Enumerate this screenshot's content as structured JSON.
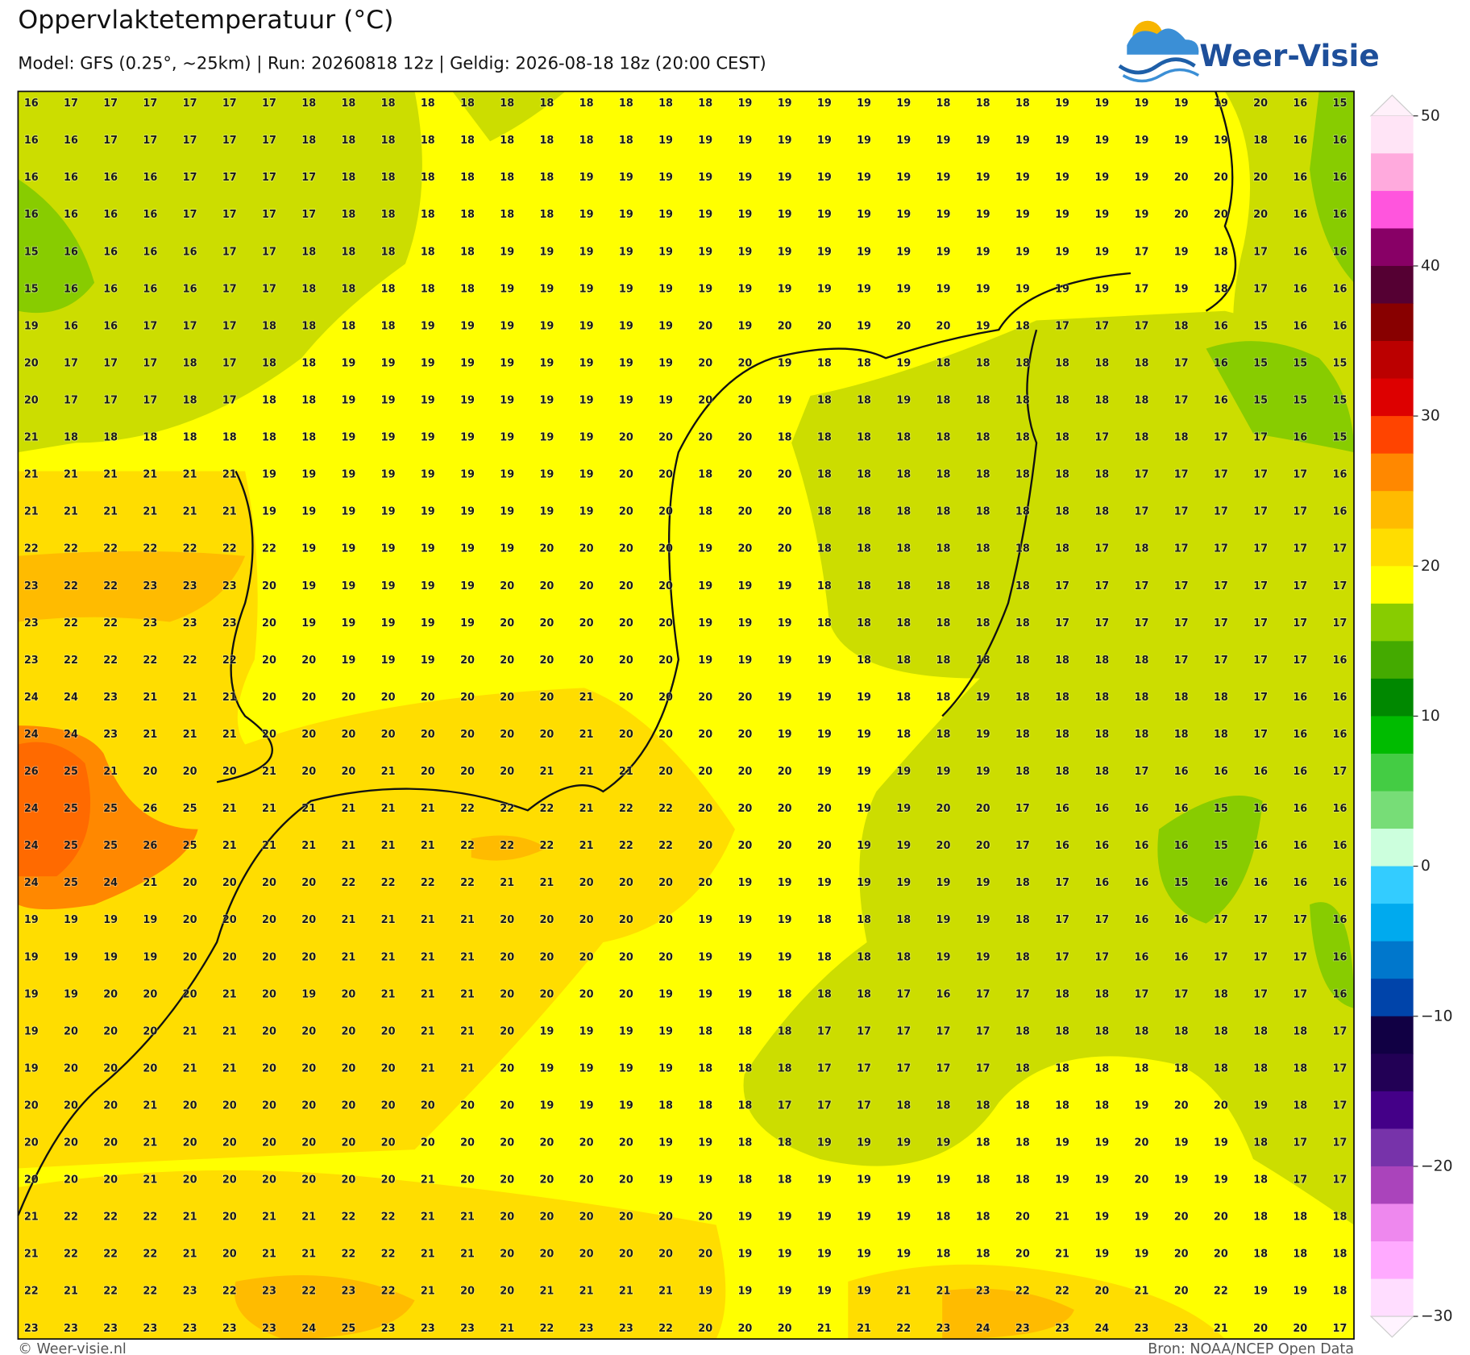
{
  "header": {
    "title": "Oppervlaktetemperatuur (°C)",
    "subtitle": "Model: GFS (0.25°, ~25km)  |  Run: 20260818 12z  |  Geldig: 2026-08-18 18z (20:00 CEST)"
  },
  "logo": "Weer-Visie",
  "grid": {
    "rows": [
      [
        16,
        17,
        17,
        17,
        17,
        17,
        17,
        18,
        18,
        18,
        18,
        18,
        18,
        18,
        18,
        18,
        18,
        18,
        19,
        19,
        19,
        19,
        19,
        18,
        18,
        18,
        19,
        19,
        19,
        19,
        19,
        20,
        16,
        15
      ],
      [
        16,
        16,
        17,
        17,
        17,
        17,
        17,
        18,
        18,
        18,
        18,
        18,
        18,
        18,
        18,
        18,
        19,
        19,
        19,
        19,
        19,
        19,
        19,
        19,
        19,
        19,
        19,
        19,
        19,
        19,
        19,
        18,
        16,
        16
      ],
      [
        16,
        16,
        16,
        16,
        17,
        17,
        17,
        17,
        18,
        18,
        18,
        18,
        18,
        18,
        19,
        19,
        19,
        19,
        19,
        19,
        19,
        19,
        19,
        19,
        19,
        19,
        19,
        19,
        19,
        20,
        20,
        20,
        16,
        16
      ],
      [
        16,
        16,
        16,
        16,
        17,
        17,
        17,
        17,
        18,
        18,
        18,
        18,
        18,
        18,
        19,
        19,
        19,
        19,
        19,
        19,
        19,
        19,
        19,
        19,
        19,
        19,
        19,
        19,
        19,
        20,
        20,
        20,
        16,
        16
      ],
      [
        15,
        16,
        16,
        16,
        16,
        17,
        17,
        18,
        18,
        18,
        18,
        18,
        19,
        19,
        19,
        19,
        19,
        19,
        19,
        19,
        19,
        19,
        19,
        19,
        19,
        19,
        19,
        19,
        17,
        19,
        18,
        17,
        16,
        16
      ],
      [
        15,
        16,
        16,
        16,
        16,
        17,
        17,
        18,
        18,
        18,
        18,
        18,
        19,
        19,
        19,
        19,
        19,
        19,
        19,
        19,
        19,
        19,
        19,
        19,
        19,
        19,
        19,
        19,
        17,
        19,
        18,
        17,
        16,
        16
      ],
      [
        19,
        16,
        16,
        17,
        17,
        17,
        18,
        18,
        18,
        18,
        19,
        19,
        19,
        19,
        19,
        19,
        19,
        20,
        19,
        20,
        20,
        19,
        20,
        20,
        19,
        18,
        17,
        17,
        17,
        18,
        16,
        15,
        16,
        16
      ],
      [
        20,
        17,
        17,
        17,
        18,
        17,
        18,
        18,
        19,
        19,
        19,
        19,
        19,
        19,
        19,
        19,
        19,
        20,
        20,
        19,
        18,
        18,
        19,
        18,
        18,
        18,
        18,
        18,
        18,
        17,
        16,
        15,
        15,
        15
      ],
      [
        20,
        17,
        17,
        17,
        18,
        17,
        18,
        18,
        19,
        19,
        19,
        19,
        19,
        19,
        19,
        19,
        19,
        20,
        20,
        19,
        18,
        18,
        19,
        18,
        18,
        18,
        18,
        18,
        18,
        17,
        16,
        15,
        15,
        15
      ],
      [
        21,
        18,
        18,
        18,
        18,
        18,
        18,
        18,
        19,
        19,
        19,
        19,
        19,
        19,
        19,
        20,
        20,
        20,
        20,
        18,
        18,
        18,
        18,
        18,
        18,
        18,
        18,
        17,
        18,
        18,
        17,
        17,
        16,
        15
      ],
      [
        21,
        21,
        21,
        21,
        21,
        21,
        19,
        19,
        19,
        19,
        19,
        19,
        19,
        19,
        19,
        20,
        20,
        18,
        20,
        20,
        18,
        18,
        18,
        18,
        18,
        18,
        18,
        18,
        17,
        17,
        17,
        17,
        17,
        16
      ],
      [
        21,
        21,
        21,
        21,
        21,
        21,
        19,
        19,
        19,
        19,
        19,
        19,
        19,
        19,
        19,
        20,
        20,
        18,
        20,
        20,
        18,
        18,
        18,
        18,
        18,
        18,
        18,
        18,
        17,
        17,
        17,
        17,
        17,
        16
      ],
      [
        22,
        22,
        22,
        22,
        22,
        22,
        22,
        19,
        19,
        19,
        19,
        19,
        19,
        20,
        20,
        20,
        20,
        19,
        20,
        20,
        18,
        18,
        18,
        18,
        18,
        18,
        18,
        17,
        18,
        17,
        17,
        17,
        17,
        17
      ],
      [
        23,
        22,
        22,
        23,
        23,
        23,
        20,
        19,
        19,
        19,
        19,
        19,
        20,
        20,
        20,
        20,
        20,
        19,
        19,
        19,
        18,
        18,
        18,
        18,
        18,
        18,
        17,
        17,
        17,
        17,
        17,
        17,
        17,
        17
      ],
      [
        23,
        22,
        22,
        23,
        23,
        23,
        20,
        19,
        19,
        19,
        19,
        19,
        20,
        20,
        20,
        20,
        20,
        19,
        19,
        19,
        18,
        18,
        18,
        18,
        18,
        18,
        17,
        17,
        17,
        17,
        17,
        17,
        17,
        17
      ],
      [
        23,
        22,
        22,
        22,
        22,
        22,
        20,
        20,
        19,
        19,
        19,
        20,
        20,
        20,
        20,
        20,
        20,
        19,
        19,
        19,
        19,
        18,
        18,
        18,
        18,
        18,
        18,
        18,
        18,
        17,
        17,
        17,
        17,
        16
      ],
      [
        24,
        24,
        23,
        21,
        21,
        21,
        20,
        20,
        20,
        20,
        20,
        20,
        20,
        20,
        21,
        20,
        20,
        20,
        20,
        19,
        19,
        19,
        18,
        18,
        19,
        18,
        18,
        18,
        18,
        18,
        18,
        17,
        16,
        16
      ],
      [
        24,
        24,
        23,
        21,
        21,
        21,
        20,
        20,
        20,
        20,
        20,
        20,
        20,
        20,
        21,
        20,
        20,
        20,
        20,
        19,
        19,
        19,
        18,
        18,
        19,
        18,
        18,
        18,
        18,
        18,
        18,
        17,
        16,
        16
      ],
      [
        26,
        25,
        21,
        20,
        20,
        20,
        21,
        20,
        20,
        21,
        20,
        20,
        20,
        21,
        21,
        21,
        20,
        20,
        20,
        20,
        19,
        19,
        19,
        19,
        19,
        18,
        18,
        18,
        17,
        16,
        16,
        16,
        16,
        17
      ],
      [
        24,
        25,
        25,
        26,
        25,
        21,
        21,
        21,
        21,
        21,
        21,
        22,
        22,
        22,
        21,
        22,
        22,
        20,
        20,
        20,
        20,
        19,
        19,
        20,
        20,
        17,
        16,
        16,
        16,
        16,
        15,
        16,
        16,
        16
      ],
      [
        24,
        25,
        25,
        26,
        25,
        21,
        21,
        21,
        21,
        21,
        21,
        22,
        22,
        22,
        21,
        22,
        22,
        20,
        20,
        20,
        20,
        19,
        19,
        20,
        20,
        17,
        16,
        16,
        16,
        16,
        15,
        16,
        16,
        16
      ],
      [
        24,
        25,
        24,
        21,
        20,
        20,
        20,
        20,
        22,
        22,
        22,
        22,
        21,
        21,
        20,
        20,
        20,
        20,
        19,
        19,
        19,
        19,
        19,
        19,
        19,
        18,
        17,
        16,
        16,
        15,
        16,
        16,
        16,
        16
      ],
      [
        19,
        19,
        19,
        19,
        20,
        20,
        20,
        20,
        21,
        21,
        21,
        21,
        20,
        20,
        20,
        20,
        20,
        19,
        19,
        19,
        18,
        18,
        18,
        19,
        19,
        18,
        17,
        17,
        16,
        16,
        17,
        17,
        17,
        16
      ],
      [
        19,
        19,
        19,
        19,
        20,
        20,
        20,
        20,
        21,
        21,
        21,
        21,
        20,
        20,
        20,
        20,
        20,
        19,
        19,
        19,
        18,
        18,
        18,
        19,
        19,
        18,
        17,
        17,
        16,
        16,
        17,
        17,
        17,
        16
      ],
      [
        19,
        19,
        20,
        20,
        20,
        21,
        20,
        19,
        20,
        21,
        21,
        21,
        20,
        20,
        20,
        20,
        19,
        19,
        19,
        18,
        18,
        18,
        17,
        16,
        17,
        17,
        18,
        18,
        17,
        17,
        18,
        17,
        17,
        16
      ],
      [
        19,
        20,
        20,
        20,
        21,
        21,
        20,
        20,
        20,
        20,
        21,
        21,
        20,
        19,
        19,
        19,
        19,
        18,
        18,
        18,
        17,
        17,
        17,
        17,
        17,
        18,
        18,
        18,
        18,
        18,
        18,
        18,
        18,
        17
      ],
      [
        19,
        20,
        20,
        20,
        21,
        21,
        20,
        20,
        20,
        20,
        21,
        21,
        20,
        19,
        19,
        19,
        19,
        18,
        18,
        18,
        17,
        17,
        17,
        17,
        17,
        18,
        18,
        18,
        18,
        18,
        18,
        18,
        18,
        17
      ],
      [
        20,
        20,
        20,
        21,
        20,
        20,
        20,
        20,
        20,
        20,
        20,
        20,
        20,
        19,
        19,
        19,
        18,
        18,
        18,
        17,
        17,
        17,
        18,
        18,
        18,
        18,
        18,
        18,
        19,
        20,
        20,
        19,
        18,
        17
      ],
      [
        20,
        20,
        20,
        21,
        20,
        20,
        20,
        20,
        20,
        20,
        20,
        20,
        20,
        20,
        20,
        20,
        19,
        19,
        18,
        18,
        19,
        19,
        19,
        19,
        18,
        18,
        19,
        19,
        20,
        19,
        19,
        18,
        17,
        17
      ],
      [
        20,
        20,
        20,
        21,
        20,
        20,
        20,
        20,
        20,
        20,
        21,
        20,
        20,
        20,
        20,
        20,
        19,
        19,
        18,
        18,
        19,
        19,
        19,
        19,
        18,
        18,
        19,
        19,
        20,
        19,
        19,
        18,
        17,
        17
      ],
      [
        21,
        22,
        22,
        22,
        21,
        20,
        21,
        21,
        22,
        22,
        21,
        21,
        20,
        20,
        20,
        20,
        20,
        20,
        19,
        19,
        19,
        19,
        19,
        18,
        18,
        20,
        21,
        19,
        19,
        20,
        20,
        18,
        18,
        18
      ],
      [
        21,
        22,
        22,
        22,
        21,
        20,
        21,
        21,
        22,
        22,
        21,
        21,
        20,
        20,
        20,
        20,
        20,
        20,
        19,
        19,
        19,
        19,
        19,
        18,
        18,
        20,
        21,
        19,
        19,
        20,
        20,
        18,
        18,
        18
      ],
      [
        22,
        21,
        22,
        22,
        23,
        22,
        23,
        22,
        23,
        22,
        21,
        20,
        20,
        21,
        21,
        21,
        21,
        19,
        19,
        19,
        19,
        19,
        21,
        21,
        23,
        22,
        22,
        20,
        21,
        20,
        22,
        19,
        19,
        18
      ],
      [
        23,
        23,
        23,
        23,
        23,
        23,
        23,
        24,
        25,
        23,
        23,
        23,
        21,
        22,
        23,
        23,
        22,
        20,
        20,
        20,
        21,
        21,
        22,
        23,
        24,
        23,
        23,
        24,
        23,
        23,
        21,
        20,
        20,
        17
      ]
    ]
  },
  "colorbar": {
    "ticks": [
      50,
      40,
      30,
      20,
      10,
      0,
      {
        "value": -10,
        "label": "−10"
      },
      {
        "value": -20,
        "label": "−20"
      },
      {
        "value": -30,
        "label": "−30"
      }
    ]
  },
  "footer": {
    "left": "© Weer-visie.nl",
    "right": "Bron: NOAA/NCEP Open Data"
  }
}
